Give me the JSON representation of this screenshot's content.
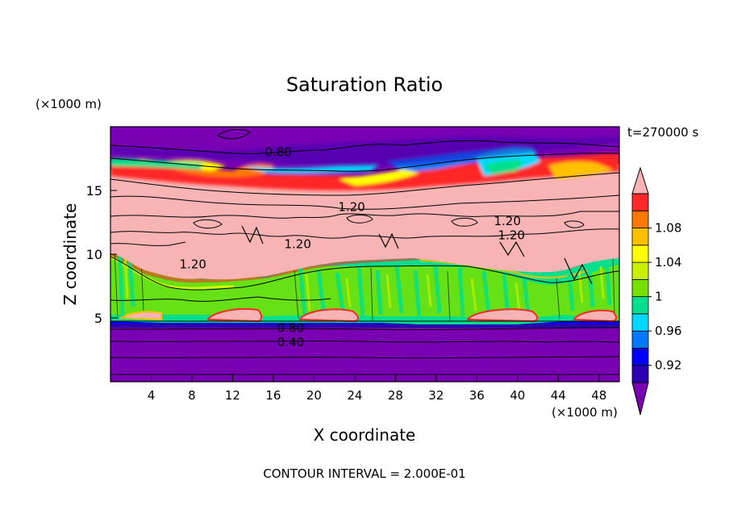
{
  "chart_data": {
    "type": "contour",
    "title": "Saturation Ratio",
    "xlabel": "X coordinate",
    "ylabel": "Z coordinate",
    "x_unit": "(×1000 m)",
    "y_unit": "(×1000 m)",
    "time_label": "t=270000 s",
    "footer": "CONTOUR INTERVAL = 2.000E-01",
    "xlim": [
      0,
      50
    ],
    "ylim": [
      0,
      20
    ],
    "x_ticks": [
      4,
      8,
      12,
      16,
      20,
      24,
      28,
      32,
      36,
      40,
      44,
      48
    ],
    "y_ticks": [
      5,
      10,
      15
    ],
    "grid": false,
    "colorbar": {
      "levels": [
        0.92,
        0.96,
        1,
        1.04,
        1.08
      ],
      "labels": [
        "0.92",
        "0.96",
        "1",
        "1.04",
        "1.08"
      ],
      "colors": [
        "#7a00b4",
        "#2a00b0",
        "#0000ff",
        "#0078ff",
        "#00d8ff",
        "#00e08c",
        "#78e000",
        "#c8f000",
        "#ffff00",
        "#ffc000",
        "#ff7800",
        "#ff2828",
        "#f8b4b4"
      ]
    },
    "contour_labels": [
      {
        "text": "0.80",
        "x": 16.5,
        "z": 18.0
      },
      {
        "text": "1.20",
        "x": 23.7,
        "z": 13.7
      },
      {
        "text": "1.20",
        "x": 39.0,
        "z": 12.6
      },
      {
        "text": "1.20",
        "x": 39.4,
        "z": 11.5
      },
      {
        "text": "1.20",
        "x": 18.4,
        "z": 10.8
      },
      {
        "text": "1.20",
        "x": 8.1,
        "z": 9.2
      },
      {
        "text": "0.80",
        "x": 17.7,
        "z": 4.2
      },
      {
        "text": "0.40",
        "x": 17.7,
        "z": 3.1
      }
    ]
  }
}
